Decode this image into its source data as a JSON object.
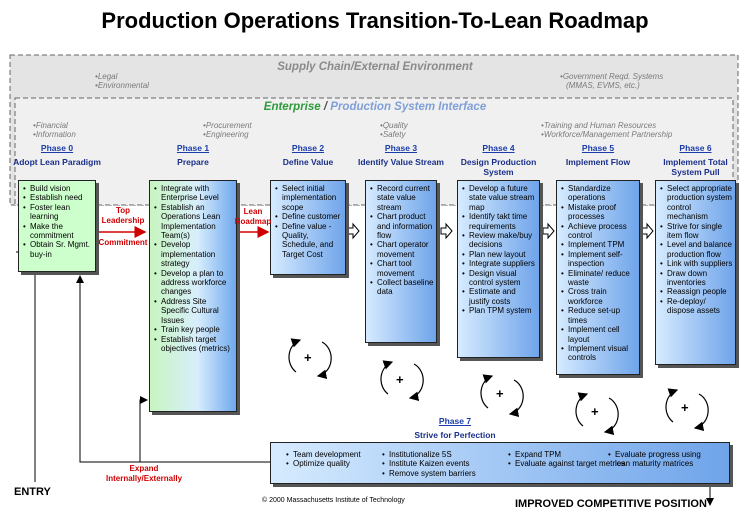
{
  "title": "Production Operations Transition-To-Lean Roadmap",
  "supply_chain": {
    "title": "Supply Chain/External Environment",
    "left": [
      "Legal",
      "Environmental"
    ],
    "right": [
      "Government Reqd. Systems",
      "(MMAS, EVMS, etc.)"
    ]
  },
  "enterprise": {
    "title": [
      "Enterprise",
      "/",
      "Production System Interface"
    ],
    "groups": [
      [
        "Financial",
        "Information"
      ],
      [
        "Procurement",
        "Engineering"
      ],
      [
        "Quality",
        "Safety"
      ],
      [
        "Training and Human Resources",
        "Workforce/Management Partnership"
      ]
    ]
  },
  "phases": [
    {
      "label": "Phase 0",
      "name": "Adopt Lean Paradigm",
      "items": [
        "Build vision",
        "Establish need",
        "Foster lean learning",
        "Make the commitment",
        "Obtain Sr. Mgmt. buy-in"
      ]
    },
    {
      "label": "Phase 1",
      "name": "Prepare",
      "items": [
        "Integrate with Enterprise Level",
        "Establish an Operations Lean Implementation Team(s)",
        "Develop implementation strategy",
        "Develop a plan to address workforce changes",
        "Address Site Specific Cultural Issues",
        "Train key people",
        "Establish target objectives (metrics)"
      ]
    },
    {
      "label": "Phase 2",
      "name": "Define Value",
      "items": [
        "Select initial implementation scope",
        "Define customer",
        "Define value - Quality, Schedule, and Target Cost"
      ]
    },
    {
      "label": "Phase 3",
      "name": "Identify Value Stream",
      "items": [
        "Record current state value stream",
        "Chart product and information flow",
        "Chart operator movement",
        "Chart tool movement",
        "Collect baseline data"
      ]
    },
    {
      "label": "Phase 4",
      "name": "Design Production System",
      "items": [
        "Develop a future state value stream map",
        "Identify takt time requirements",
        "Review make/buy decisions",
        "Plan new layout",
        "Integrate suppliers",
        "Design visual control system",
        "Estimate and justify costs",
        "Plan TPM system"
      ]
    },
    {
      "label": "Phase 5",
      "name": "Implement Flow",
      "items": [
        "Standardize operations",
        "Mistake proof processes",
        "Achieve process control",
        "Implement TPM",
        "Implement self-inspection",
        "Eliminate/ reduce waste",
        "Cross train workforce",
        "Reduce set-up times",
        "Implement cell layout",
        "Implement visual controls"
      ]
    },
    {
      "label": "Phase 6",
      "name": "Implement Total System Pull",
      "items": [
        "Select appropriate production system control mechanism",
        "Strive for single item flow",
        "Level and balance production flow",
        "Link with suppliers",
        "Draw down inventories",
        "Reassign people",
        "Re-deploy/ dispose assets"
      ]
    }
  ],
  "phase7": {
    "label": "Phase 7",
    "name": "Strive for Perfection",
    "columns": [
      [
        "Team development",
        "Optimize quality"
      ],
      [
        "Institutionalize 5S",
        "Institute Kaizen events",
        "Remove system barriers"
      ],
      [
        "Expand TPM",
        "Evaluate against target metrics"
      ],
      [
        "Evaluate progress using lean maturity matrices"
      ]
    ]
  },
  "arrows": {
    "leadership": [
      "Top Leadership",
      "Commitment"
    ],
    "roadmap": "Lean Roadmap",
    "expand": "Expand Internally/Externally"
  },
  "cycle_symbol": "+",
  "entry": "ENTRY",
  "outcome": "IMPROVED COMPETITIVE POSITION",
  "copyright": "© 2000 Massachusetts Institute of Technology"
}
